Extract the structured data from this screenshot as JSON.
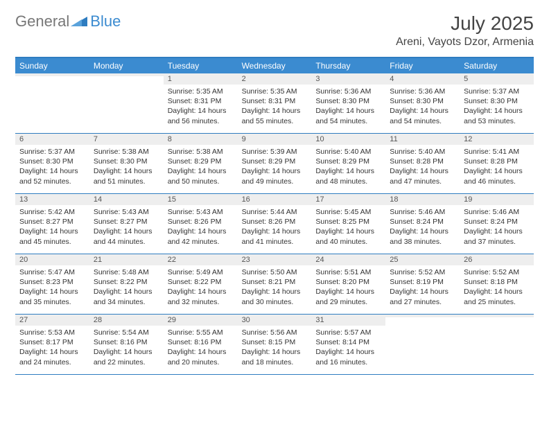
{
  "logo": {
    "text1": "General",
    "text2": "Blue"
  },
  "title": "July 2025",
  "location": "Areni, Vayots Dzor, Armenia",
  "colors": {
    "header_bg": "#3b8bd0",
    "header_border": "#2e7cc0",
    "daynum_bg": "#eeeeee",
    "text": "#333333"
  },
  "day_names": [
    "Sunday",
    "Monday",
    "Tuesday",
    "Wednesday",
    "Thursday",
    "Friday",
    "Saturday"
  ],
  "weeks": [
    [
      {
        "n": "",
        "sr": "",
        "ss": "",
        "dl": ""
      },
      {
        "n": "",
        "sr": "",
        "ss": "",
        "dl": ""
      },
      {
        "n": "1",
        "sr": "Sunrise: 5:35 AM",
        "ss": "Sunset: 8:31 PM",
        "dl": "Daylight: 14 hours and 56 minutes."
      },
      {
        "n": "2",
        "sr": "Sunrise: 5:35 AM",
        "ss": "Sunset: 8:31 PM",
        "dl": "Daylight: 14 hours and 55 minutes."
      },
      {
        "n": "3",
        "sr": "Sunrise: 5:36 AM",
        "ss": "Sunset: 8:30 PM",
        "dl": "Daylight: 14 hours and 54 minutes."
      },
      {
        "n": "4",
        "sr": "Sunrise: 5:36 AM",
        "ss": "Sunset: 8:30 PM",
        "dl": "Daylight: 14 hours and 54 minutes."
      },
      {
        "n": "5",
        "sr": "Sunrise: 5:37 AM",
        "ss": "Sunset: 8:30 PM",
        "dl": "Daylight: 14 hours and 53 minutes."
      }
    ],
    [
      {
        "n": "6",
        "sr": "Sunrise: 5:37 AM",
        "ss": "Sunset: 8:30 PM",
        "dl": "Daylight: 14 hours and 52 minutes."
      },
      {
        "n": "7",
        "sr": "Sunrise: 5:38 AM",
        "ss": "Sunset: 8:30 PM",
        "dl": "Daylight: 14 hours and 51 minutes."
      },
      {
        "n": "8",
        "sr": "Sunrise: 5:38 AM",
        "ss": "Sunset: 8:29 PM",
        "dl": "Daylight: 14 hours and 50 minutes."
      },
      {
        "n": "9",
        "sr": "Sunrise: 5:39 AM",
        "ss": "Sunset: 8:29 PM",
        "dl": "Daylight: 14 hours and 49 minutes."
      },
      {
        "n": "10",
        "sr": "Sunrise: 5:40 AM",
        "ss": "Sunset: 8:29 PM",
        "dl": "Daylight: 14 hours and 48 minutes."
      },
      {
        "n": "11",
        "sr": "Sunrise: 5:40 AM",
        "ss": "Sunset: 8:28 PM",
        "dl": "Daylight: 14 hours and 47 minutes."
      },
      {
        "n": "12",
        "sr": "Sunrise: 5:41 AM",
        "ss": "Sunset: 8:28 PM",
        "dl": "Daylight: 14 hours and 46 minutes."
      }
    ],
    [
      {
        "n": "13",
        "sr": "Sunrise: 5:42 AM",
        "ss": "Sunset: 8:27 PM",
        "dl": "Daylight: 14 hours and 45 minutes."
      },
      {
        "n": "14",
        "sr": "Sunrise: 5:43 AM",
        "ss": "Sunset: 8:27 PM",
        "dl": "Daylight: 14 hours and 44 minutes."
      },
      {
        "n": "15",
        "sr": "Sunrise: 5:43 AM",
        "ss": "Sunset: 8:26 PM",
        "dl": "Daylight: 14 hours and 42 minutes."
      },
      {
        "n": "16",
        "sr": "Sunrise: 5:44 AM",
        "ss": "Sunset: 8:26 PM",
        "dl": "Daylight: 14 hours and 41 minutes."
      },
      {
        "n": "17",
        "sr": "Sunrise: 5:45 AM",
        "ss": "Sunset: 8:25 PM",
        "dl": "Daylight: 14 hours and 40 minutes."
      },
      {
        "n": "18",
        "sr": "Sunrise: 5:46 AM",
        "ss": "Sunset: 8:24 PM",
        "dl": "Daylight: 14 hours and 38 minutes."
      },
      {
        "n": "19",
        "sr": "Sunrise: 5:46 AM",
        "ss": "Sunset: 8:24 PM",
        "dl": "Daylight: 14 hours and 37 minutes."
      }
    ],
    [
      {
        "n": "20",
        "sr": "Sunrise: 5:47 AM",
        "ss": "Sunset: 8:23 PM",
        "dl": "Daylight: 14 hours and 35 minutes."
      },
      {
        "n": "21",
        "sr": "Sunrise: 5:48 AM",
        "ss": "Sunset: 8:22 PM",
        "dl": "Daylight: 14 hours and 34 minutes."
      },
      {
        "n": "22",
        "sr": "Sunrise: 5:49 AM",
        "ss": "Sunset: 8:22 PM",
        "dl": "Daylight: 14 hours and 32 minutes."
      },
      {
        "n": "23",
        "sr": "Sunrise: 5:50 AM",
        "ss": "Sunset: 8:21 PM",
        "dl": "Daylight: 14 hours and 30 minutes."
      },
      {
        "n": "24",
        "sr": "Sunrise: 5:51 AM",
        "ss": "Sunset: 8:20 PM",
        "dl": "Daylight: 14 hours and 29 minutes."
      },
      {
        "n": "25",
        "sr": "Sunrise: 5:52 AM",
        "ss": "Sunset: 8:19 PM",
        "dl": "Daylight: 14 hours and 27 minutes."
      },
      {
        "n": "26",
        "sr": "Sunrise: 5:52 AM",
        "ss": "Sunset: 8:18 PM",
        "dl": "Daylight: 14 hours and 25 minutes."
      }
    ],
    [
      {
        "n": "27",
        "sr": "Sunrise: 5:53 AM",
        "ss": "Sunset: 8:17 PM",
        "dl": "Daylight: 14 hours and 24 minutes."
      },
      {
        "n": "28",
        "sr": "Sunrise: 5:54 AM",
        "ss": "Sunset: 8:16 PM",
        "dl": "Daylight: 14 hours and 22 minutes."
      },
      {
        "n": "29",
        "sr": "Sunrise: 5:55 AM",
        "ss": "Sunset: 8:16 PM",
        "dl": "Daylight: 14 hours and 20 minutes."
      },
      {
        "n": "30",
        "sr": "Sunrise: 5:56 AM",
        "ss": "Sunset: 8:15 PM",
        "dl": "Daylight: 14 hours and 18 minutes."
      },
      {
        "n": "31",
        "sr": "Sunrise: 5:57 AM",
        "ss": "Sunset: 8:14 PM",
        "dl": "Daylight: 14 hours and 16 minutes."
      },
      {
        "n": "",
        "sr": "",
        "ss": "",
        "dl": ""
      },
      {
        "n": "",
        "sr": "",
        "ss": "",
        "dl": ""
      }
    ]
  ]
}
